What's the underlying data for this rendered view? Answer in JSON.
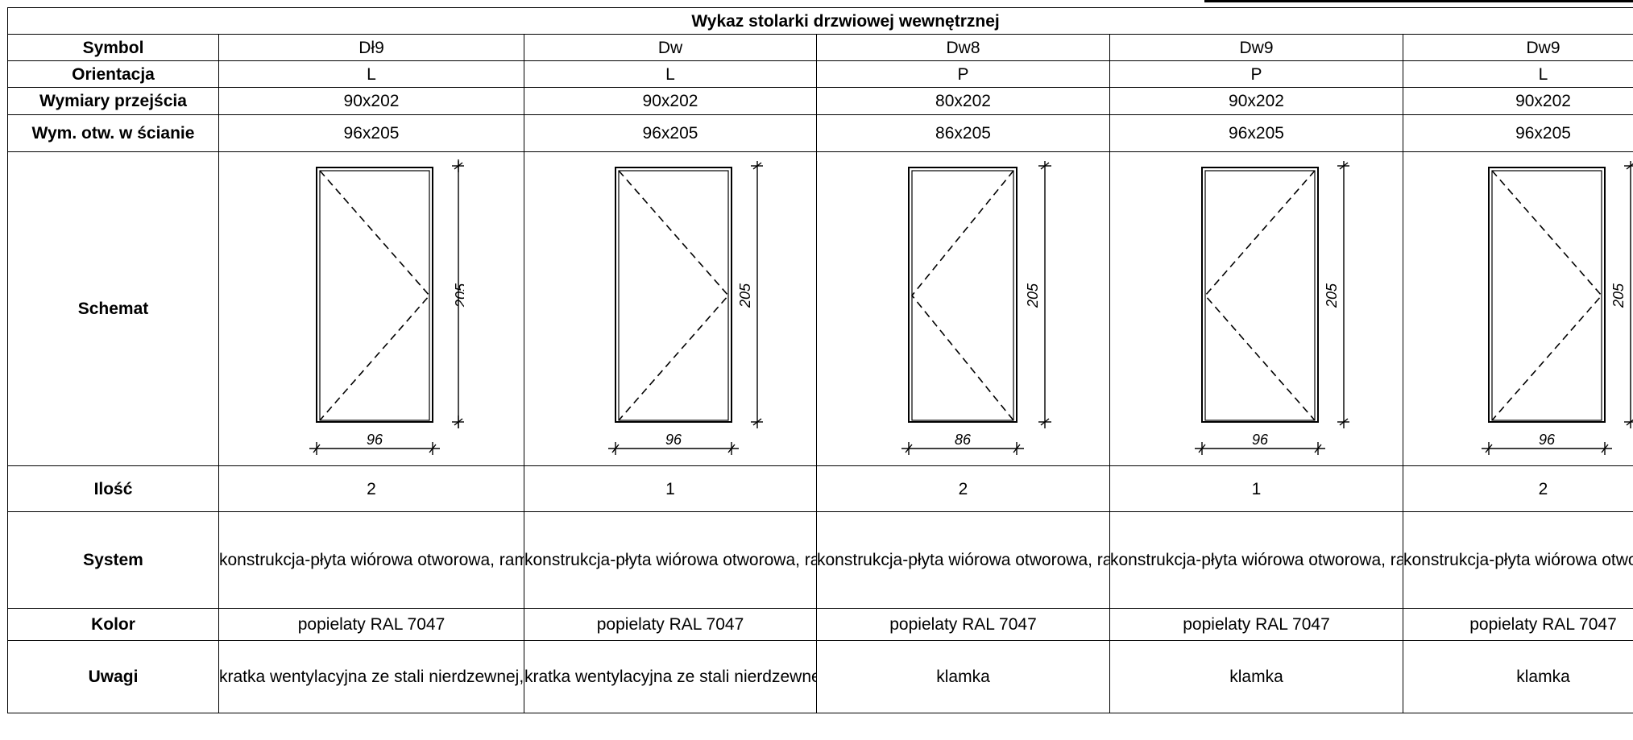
{
  "title": "Wykaz stolarki drzwiowej  wewnętrznej",
  "labels": {
    "symbol": "Symbol",
    "orientacja": "Orientacja",
    "wymiary": "Wymiary przejścia",
    "wym_otw": "Wym. otw. w ścianie",
    "schemat": "Schemat",
    "ilosc": "Ilość",
    "system": "System",
    "kolor": "Kolor",
    "uwagi": "Uwagi"
  },
  "doors": [
    {
      "symbol": "Dł9",
      "orientacja": "L",
      "wymiary": "90x202",
      "wym_otw": "96x205",
      "width_label": "96",
      "height_label": "205",
      "ilosc": "2",
      "system": "konstrukcja-płyta wiórowa otworowa, rama z klejonki drewnianej, okleina - HPL, ościeżnica - stalowa kątowa",
      "kolor": "popielaty RAL 7047",
      "uwagi": "kratka wentylacyjna ze stali nierdzewnej, zamek łazienkowy, klamka"
    },
    {
      "symbol": "Dw",
      "orientacja": "L",
      "wymiary": "90x202",
      "wym_otw": "96x205",
      "width_label": "96",
      "height_label": "205",
      "ilosc": "1",
      "system": "konstrukcja-płyta wiórowa otworowa, rama z klejonki drewnianej, okleina - HPL, ościeżnica - stalowa kątowa",
      "kolor": "popielaty RAL 7047",
      "uwagi": "kratka wentylacyjna ze stali nierdzewnej, zamek łazienkowy, klamka"
    },
    {
      "symbol": "Dw8",
      "orientacja": "P",
      "wymiary": "80x202",
      "wym_otw": "86x205",
      "width_label": "86",
      "height_label": "205",
      "ilosc": "2",
      "system": "konstrukcja-płyta wiórowa otworowa, rama z klejonki drewnianej, okleina - HPL, ościeżnica - stalowa kątowa",
      "kolor": "popielaty RAL 7047",
      "uwagi": "klamka"
    },
    {
      "symbol": "Dw9",
      "orientacja": "P",
      "wymiary": "90x202",
      "wym_otw": "96x205",
      "width_label": "96",
      "height_label": "205",
      "ilosc": "1",
      "system": "konstrukcja-płyta wiórowa otworowa, rama z klejonki drewnianej, okleina - HPL, ościeżnica - stalowa kątowa",
      "kolor": "popielaty RAL 7047",
      "uwagi": "klamka"
    },
    {
      "symbol": "Dw9",
      "orientacja": "L",
      "wymiary": "90x202",
      "wym_otw": "96x205",
      "width_label": "96",
      "height_label": "205",
      "ilosc": "2",
      "system": "konstrukcja-płyta wiórowa otworowa, rama z klejonki drewnianej, okleina - HPL",
      "kolor": "popielaty RAL 7047",
      "uwagi": "klamka"
    }
  ]
}
